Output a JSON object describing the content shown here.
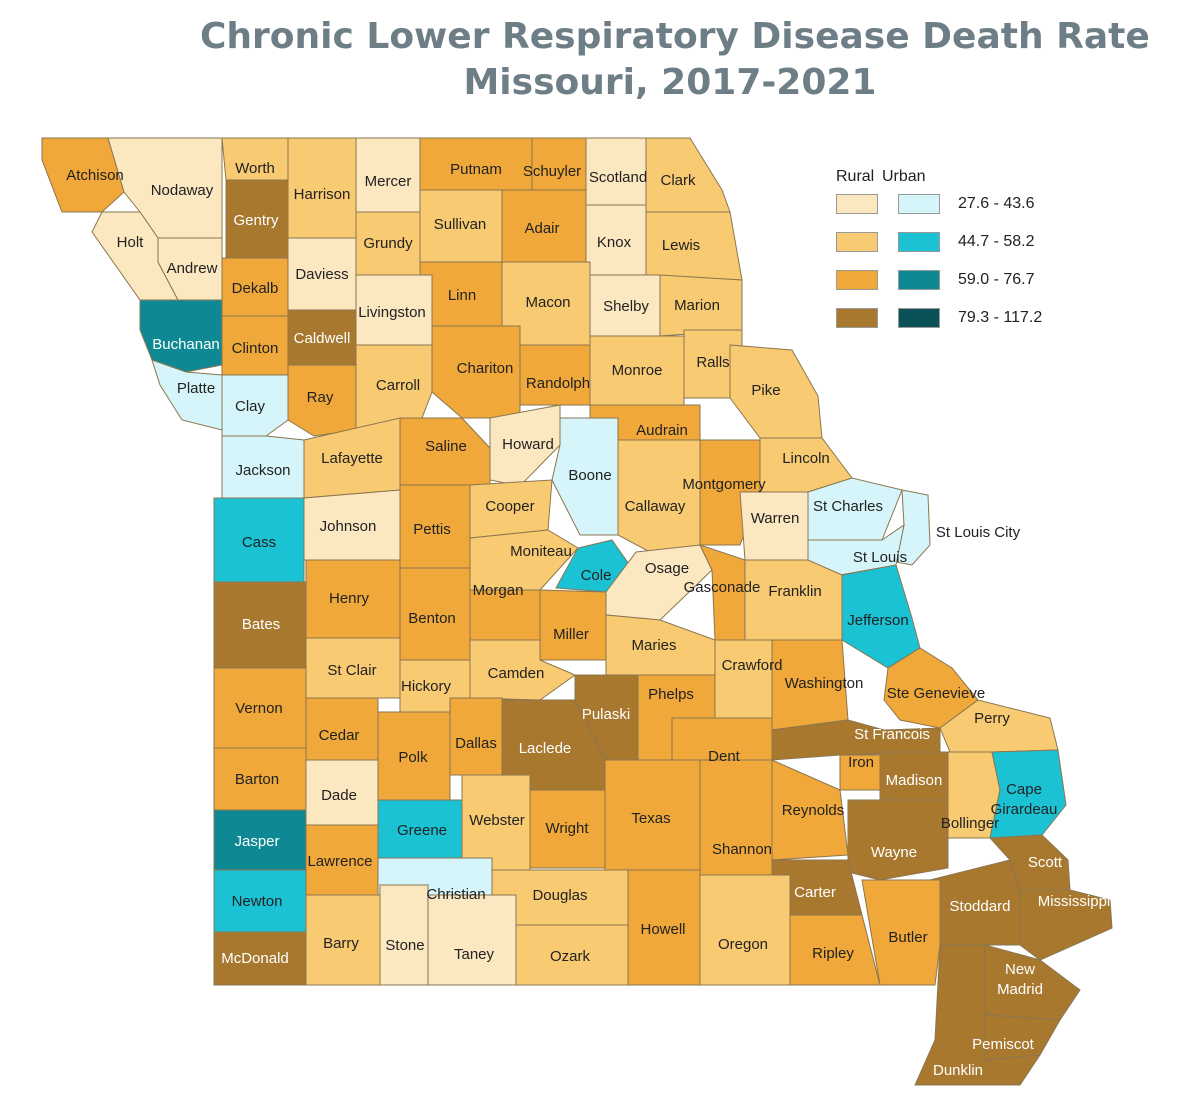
{
  "title": {
    "line1": "Chronic Lower Respiratory Disease Death Rate",
    "line2": "Missouri, 2017-2021"
  },
  "legend": {
    "rural_header": "Rural",
    "urban_header": "Urban",
    "classes": [
      {
        "range": "27.6 - 43.6",
        "rural_color": "#fbe7c0",
        "urban_color": "#d6f5fa"
      },
      {
        "range": "44.7 - 58.2",
        "rural_color": "#f8ca72",
        "urban_color": "#1ac2d4"
      },
      {
        "range": "59.0 - 76.7",
        "rural_color": "#f0a83a",
        "urban_color": "#0e8993"
      },
      {
        "range": "79.3 - 117.2",
        "rural_color": "#a8782e",
        "urban_color": "#0b5258"
      }
    ]
  },
  "counties": [
    {
      "name": "Atchison",
      "cls": "r3"
    },
    {
      "name": "Nodaway",
      "cls": "r1"
    },
    {
      "name": "Worth",
      "cls": "r2"
    },
    {
      "name": "Harrison",
      "cls": "r2"
    },
    {
      "name": "Mercer",
      "cls": "r1"
    },
    {
      "name": "Putnam",
      "cls": "r3"
    },
    {
      "name": "Schuyler",
      "cls": "r3"
    },
    {
      "name": "Scotland",
      "cls": "r1"
    },
    {
      "name": "Clark",
      "cls": "r2"
    },
    {
      "name": "Holt",
      "cls": "r1"
    },
    {
      "name": "Andrew",
      "cls": "r1"
    },
    {
      "name": "Gentry",
      "cls": "r4"
    },
    {
      "name": "Daviess",
      "cls": "r1"
    },
    {
      "name": "Grundy",
      "cls": "r2"
    },
    {
      "name": "Sullivan",
      "cls": "r2"
    },
    {
      "name": "Adair",
      "cls": "r3"
    },
    {
      "name": "Knox",
      "cls": "r1"
    },
    {
      "name": "Lewis",
      "cls": "r2"
    },
    {
      "name": "Dekalb",
      "cls": "r3"
    },
    {
      "name": "Livingston",
      "cls": "r1"
    },
    {
      "name": "Linn",
      "cls": "r3"
    },
    {
      "name": "Macon",
      "cls": "r2"
    },
    {
      "name": "Shelby",
      "cls": "r1"
    },
    {
      "name": "Marion",
      "cls": "r2"
    },
    {
      "name": "Buchanan",
      "cls": "u3"
    },
    {
      "name": "Clinton",
      "cls": "r3"
    },
    {
      "name": "Caldwell",
      "cls": "r4"
    },
    {
      "name": "Chariton",
      "cls": "r3"
    },
    {
      "name": "Randolph",
      "cls": "r3"
    },
    {
      "name": "Monroe",
      "cls": "r2"
    },
    {
      "name": "Ralls",
      "cls": "r2"
    },
    {
      "name": "Pike",
      "cls": "r2"
    },
    {
      "name": "Platte",
      "cls": "u1"
    },
    {
      "name": "Clay",
      "cls": "u1"
    },
    {
      "name": "Ray",
      "cls": "r3"
    },
    {
      "name": "Carroll",
      "cls": "r2"
    },
    {
      "name": "Saline",
      "cls": "r3"
    },
    {
      "name": "Howard",
      "cls": "r1"
    },
    {
      "name": "Boone",
      "cls": "u1"
    },
    {
      "name": "Audrain",
      "cls": "r3"
    },
    {
      "name": "Lincoln",
      "cls": "r2"
    },
    {
      "name": "Jackson",
      "cls": "u1"
    },
    {
      "name": "Lafayette",
      "cls": "r2"
    },
    {
      "name": "Montgomery",
      "cls": "r3"
    },
    {
      "name": "Callaway",
      "cls": "r2"
    },
    {
      "name": "Warren",
      "cls": "r1"
    },
    {
      "name": "St Charles",
      "cls": "u1"
    },
    {
      "name": "St Louis City",
      "cls": "u1"
    },
    {
      "name": "St Louis",
      "cls": "u1"
    },
    {
      "name": "Cass",
      "cls": "u2"
    },
    {
      "name": "Johnson",
      "cls": "r1"
    },
    {
      "name": "Pettis",
      "cls": "r3"
    },
    {
      "name": "Cooper",
      "cls": "r2"
    },
    {
      "name": "Moniteau",
      "cls": "r2"
    },
    {
      "name": "Cole",
      "cls": "u2"
    },
    {
      "name": "Osage",
      "cls": "r1"
    },
    {
      "name": "Gasconade",
      "cls": "r3"
    },
    {
      "name": "Franklin",
      "cls": "r2"
    },
    {
      "name": "Jefferson",
      "cls": "u2"
    },
    {
      "name": "Bates",
      "cls": "r4"
    },
    {
      "name": "Henry",
      "cls": "r3"
    },
    {
      "name": "Benton",
      "cls": "r3"
    },
    {
      "name": "Morgan",
      "cls": "r3"
    },
    {
      "name": "Miller",
      "cls": "r3"
    },
    {
      "name": "Maries",
      "cls": "r2"
    },
    {
      "name": "St Clair",
      "cls": "r2"
    },
    {
      "name": "Hickory",
      "cls": "r2"
    },
    {
      "name": "Camden",
      "cls": "r2"
    },
    {
      "name": "Pulaski",
      "cls": "r4"
    },
    {
      "name": "Phelps",
      "cls": "r3"
    },
    {
      "name": "Crawford",
      "cls": "r2"
    },
    {
      "name": "Washington",
      "cls": "r3"
    },
    {
      "name": "Ste Genevieve",
      "cls": "r3"
    },
    {
      "name": "Perry",
      "cls": "r2"
    },
    {
      "name": "Vernon",
      "cls": "r3"
    },
    {
      "name": "Cedar",
      "cls": "r3"
    },
    {
      "name": "Polk",
      "cls": "r3"
    },
    {
      "name": "Dallas",
      "cls": "r3"
    },
    {
      "name": "Laclede",
      "cls": "r4"
    },
    {
      "name": "Dent",
      "cls": "r3"
    },
    {
      "name": "St Francois",
      "cls": "r4"
    },
    {
      "name": "Iron",
      "cls": "r3"
    },
    {
      "name": "Madison",
      "cls": "r4"
    },
    {
      "name": "Bollinger",
      "cls": "r2"
    },
    {
      "name": "Cape Girardeau",
      "cls": "u2"
    },
    {
      "name": "Barton",
      "cls": "r3"
    },
    {
      "name": "Dade",
      "cls": "r1"
    },
    {
      "name": "Greene",
      "cls": "u2"
    },
    {
      "name": "Webster",
      "cls": "r2"
    },
    {
      "name": "Wright",
      "cls": "r3"
    },
    {
      "name": "Texas",
      "cls": "r3"
    },
    {
      "name": "Shannon",
      "cls": "r3"
    },
    {
      "name": "Reynolds",
      "cls": "r3"
    },
    {
      "name": "Wayne",
      "cls": "r4"
    },
    {
      "name": "Jasper",
      "cls": "u3"
    },
    {
      "name": "Lawrence",
      "cls": "r3"
    },
    {
      "name": "Christian",
      "cls": "u1"
    },
    {
      "name": "Douglas",
      "cls": "r2"
    },
    {
      "name": "Carter",
      "cls": "r4"
    },
    {
      "name": "Scott",
      "cls": "r4"
    },
    {
      "name": "Stoddard",
      "cls": "r4"
    },
    {
      "name": "Mississippi",
      "cls": "r4"
    },
    {
      "name": "Newton",
      "cls": "u2"
    },
    {
      "name": "Barry",
      "cls": "r2"
    },
    {
      "name": "Stone",
      "cls": "r1"
    },
    {
      "name": "Taney",
      "cls": "r1"
    },
    {
      "name": "Ozark",
      "cls": "r2"
    },
    {
      "name": "Howell",
      "cls": "r3"
    },
    {
      "name": "Oregon",
      "cls": "r2"
    },
    {
      "name": "Ripley",
      "cls": "r3"
    },
    {
      "name": "Butler",
      "cls": "r3"
    },
    {
      "name": "New Madrid",
      "cls": "r4"
    },
    {
      "name": "McDonald",
      "cls": "r4"
    },
    {
      "name": "Pemiscot",
      "cls": "r4"
    },
    {
      "name": "Dunklin",
      "cls": "r4"
    }
  ]
}
